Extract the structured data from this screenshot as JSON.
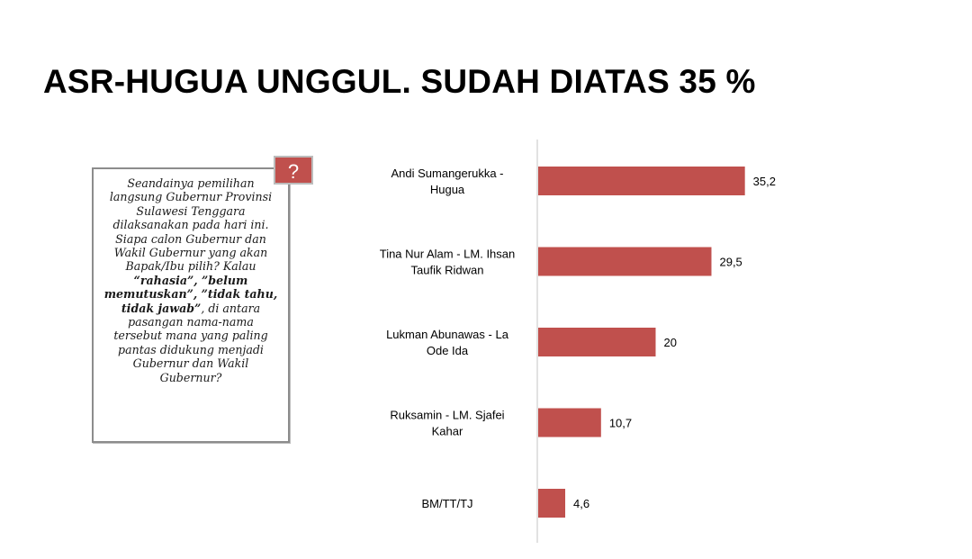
{
  "title": "ASR-HUGUA UNGGUL. SUDAH DIATAS 35 %",
  "question": {
    "icon": "question-mark-icon",
    "icon_glyph": "?",
    "text_before": "Seandainya pemilihan\nlangsung Gubernur Provinsi\nSulawesi Tenggara\ndilaksanakan pada hari ini.\nSiapa calon Gubernur dan\nWakil Gubernur yang akan\nBapak/Ibu pilih? Kalau\n",
    "bold_text": "“rahasia”, ”belum\nmemutuskan”, ”tidak tahu,\ntidak  jawab”",
    "text_after": ", di antara\npasangan nama-nama\ntersebut mana yang paling\npantas didukung menjadi\nGubernur dan Wakil\nGubernur?"
  },
  "chart_data": {
    "type": "bar",
    "orientation": "horizontal",
    "categories": [
      [
        "Andi Sumangerukka -",
        "Hugua"
      ],
      [
        "Tina Nur Alam - LM. Ihsan",
        "Taufik Ridwan"
      ],
      [
        "Lukman Abunawas -  La",
        "Ode Ida"
      ],
      [
        "Ruksamin - LM. Sjafei",
        "Kahar"
      ],
      [
        "BM/TT/TJ"
      ]
    ],
    "values": [
      35.2,
      29.5,
      20,
      10.7,
      4.6
    ],
    "data_labels": [
      "35,2",
      "29,5",
      "20",
      "10,7",
      "4,6"
    ],
    "xlim": [
      0,
      40
    ],
    "bar_color": "#c0504d",
    "grid": false,
    "legend": "none"
  }
}
